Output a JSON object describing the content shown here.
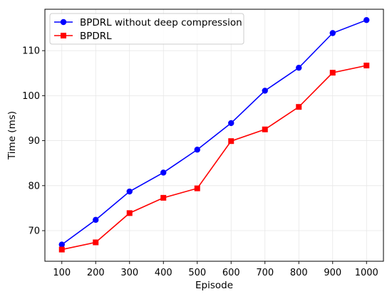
{
  "chart_data": {
    "type": "line",
    "title": "",
    "xlabel": "Episode",
    "ylabel": "Time (ms)",
    "x": [
      100,
      200,
      300,
      400,
      500,
      600,
      700,
      800,
      900,
      1000
    ],
    "xticks": [
      "100",
      "200",
      "300",
      "400",
      "500",
      "600",
      "700",
      "800",
      "900",
      "1000"
    ],
    "yticks": [
      "70",
      "80",
      "90",
      "100",
      "110"
    ],
    "ytick_values": [
      70,
      80,
      90,
      100,
      110
    ],
    "xlim": [
      50,
      1050
    ],
    "ylim": [
      63.2,
      119.2
    ],
    "grid": true,
    "legend_position": "top-left",
    "series": [
      {
        "name": "BPDRL without deep compression",
        "color": "#0000ff",
        "marker": "circle",
        "values": [
          66.9,
          72.4,
          78.7,
          82.9,
          88.0,
          93.9,
          101.1,
          106.2,
          113.9,
          116.8
        ]
      },
      {
        "name": "BPDRL",
        "color": "#ff0000",
        "marker": "square",
        "values": [
          65.8,
          67.4,
          73.9,
          77.3,
          79.4,
          89.9,
          92.5,
          97.5,
          105.1,
          106.7
        ]
      }
    ]
  }
}
